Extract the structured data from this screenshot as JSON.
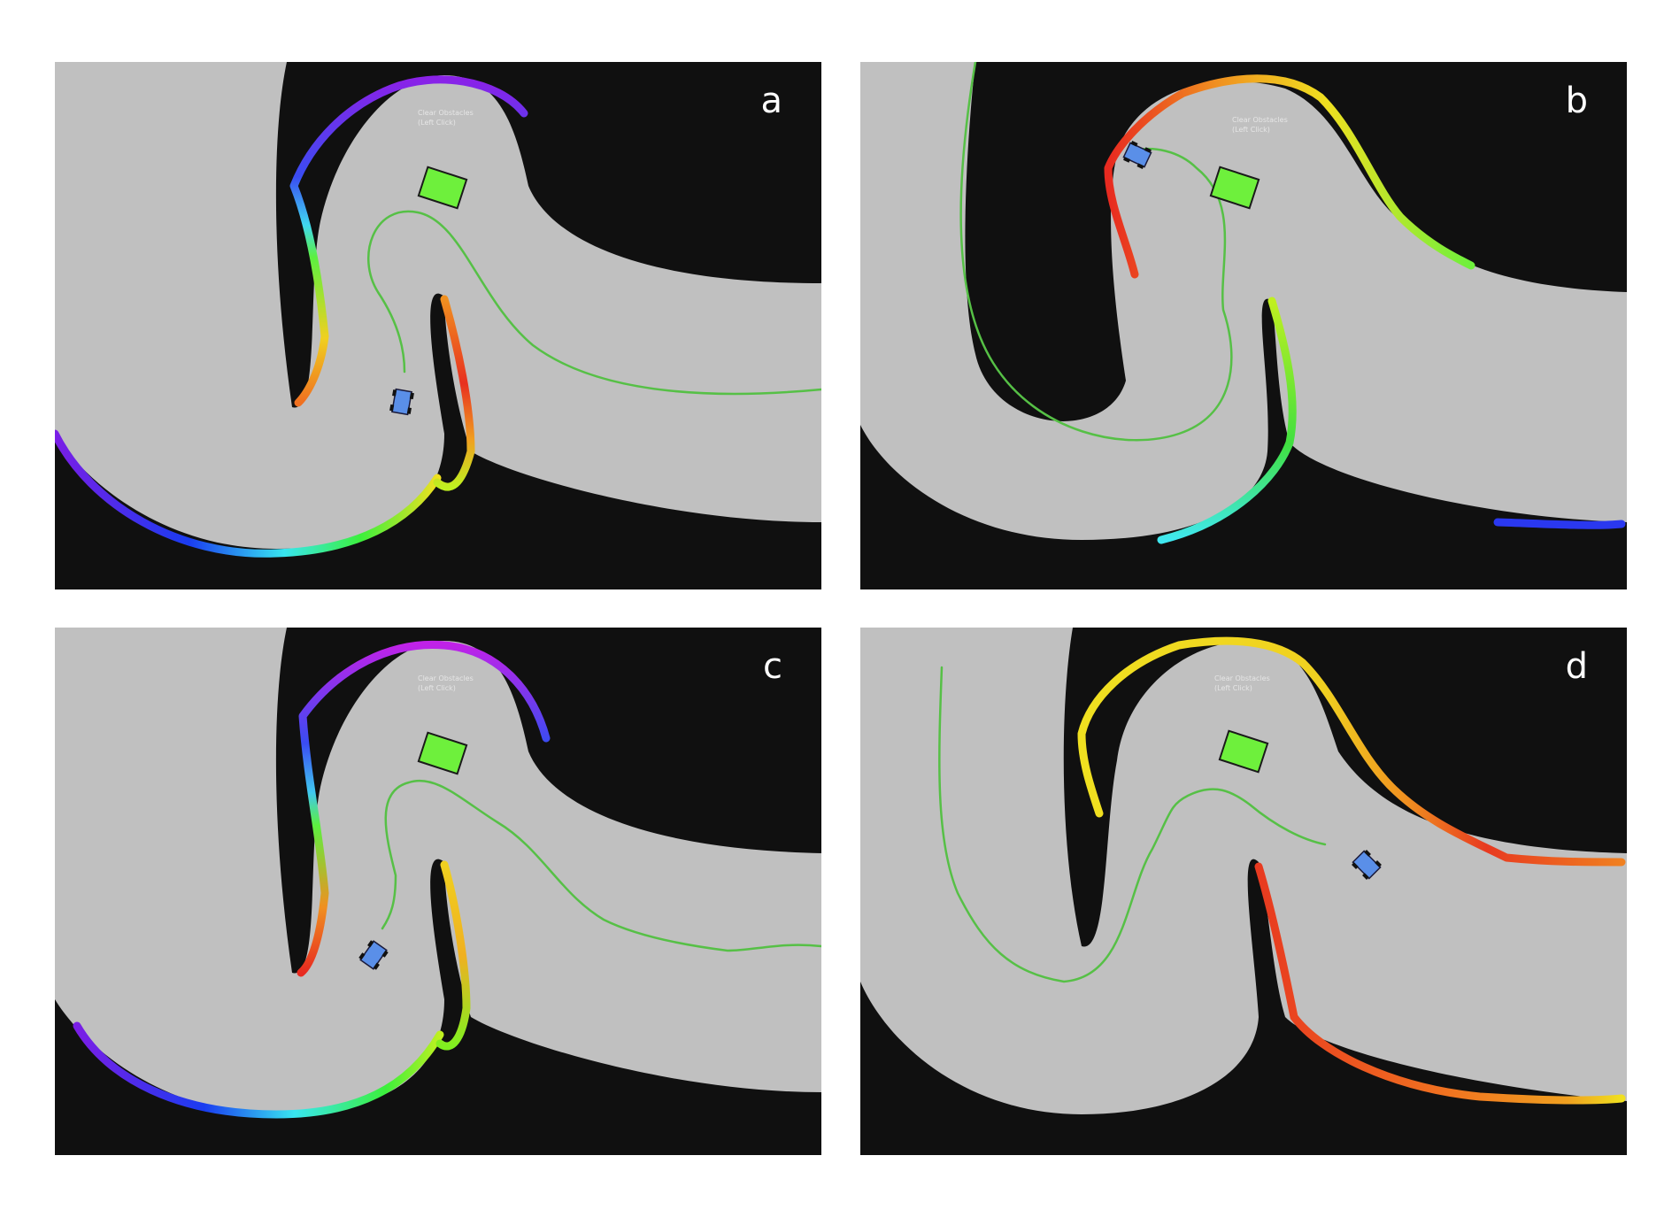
{
  "panels": [
    {
      "id": "a",
      "label": "a",
      "overlay": [
        "Clear Obstacles",
        "(Left Click)"
      ]
    },
    {
      "id": "b",
      "label": "b",
      "overlay": [
        "Clear Obstacles",
        "(Left Click)"
      ]
    },
    {
      "id": "c",
      "label": "c",
      "overlay": [
        "Clear Obstacles",
        "(Left Click)"
      ]
    },
    {
      "id": "d",
      "label": "d",
      "overlay": [
        "Clear Obstacles",
        "(Left Click)"
      ]
    }
  ],
  "colors": {
    "background": "#101010",
    "track": "#c0c0c0",
    "path": "#56c046",
    "goal": "#6ef03c",
    "robot": "#5a8fe8"
  },
  "icons": [
    "robot-icon",
    "goal-marker-icon"
  ]
}
